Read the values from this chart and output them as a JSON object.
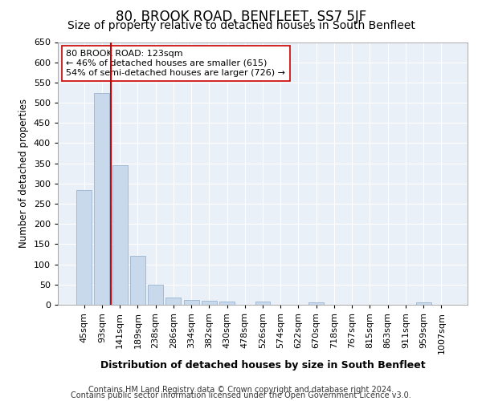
{
  "title": "80, BROOK ROAD, BENFLEET, SS7 5JF",
  "subtitle": "Size of property relative to detached houses in South Benfleet",
  "xlabel": "Distribution of detached houses by size in South Benfleet",
  "ylabel": "Number of detached properties",
  "footer_line1": "Contains HM Land Registry data © Crown copyright and database right 2024.",
  "footer_line2": "Contains public sector information licensed under the Open Government Licence v3.0.",
  "annotation_line1": "80 BROOK ROAD: 123sqm",
  "annotation_line2": "← 46% of detached houses are smaller (615)",
  "annotation_line3": "54% of semi-detached houses are larger (726) →",
  "bar_color": "#c9d9ec",
  "bar_edge_color": "#9ab4d0",
  "red_line_color": "#cc0000",
  "red_line_x": 1.5,
  "categories": [
    "45sqm",
    "93sqm",
    "141sqm",
    "189sqm",
    "238sqm",
    "286sqm",
    "334sqm",
    "382sqm",
    "430sqm",
    "478sqm",
    "526sqm",
    "574sqm",
    "622sqm",
    "670sqm",
    "718sqm",
    "767sqm",
    "815sqm",
    "863sqm",
    "911sqm",
    "959sqm",
    "1007sqm"
  ],
  "values": [
    283,
    524,
    346,
    121,
    49,
    18,
    11,
    10,
    7,
    0,
    7,
    0,
    0,
    5,
    0,
    0,
    0,
    0,
    0,
    5,
    0
  ],
  "ylim": [
    0,
    650
  ],
  "yticks": [
    0,
    50,
    100,
    150,
    200,
    250,
    300,
    350,
    400,
    450,
    500,
    550,
    600,
    650
  ],
  "bg_color": "#eaf0f8",
  "grid_color": "#ffffff",
  "title_fontsize": 12,
  "subtitle_fontsize": 10,
  "axis_label_fontsize": 9,
  "ylabel_fontsize": 8.5,
  "tick_fontsize": 8,
  "footer_fontsize": 7,
  "ann_fontsize": 8
}
